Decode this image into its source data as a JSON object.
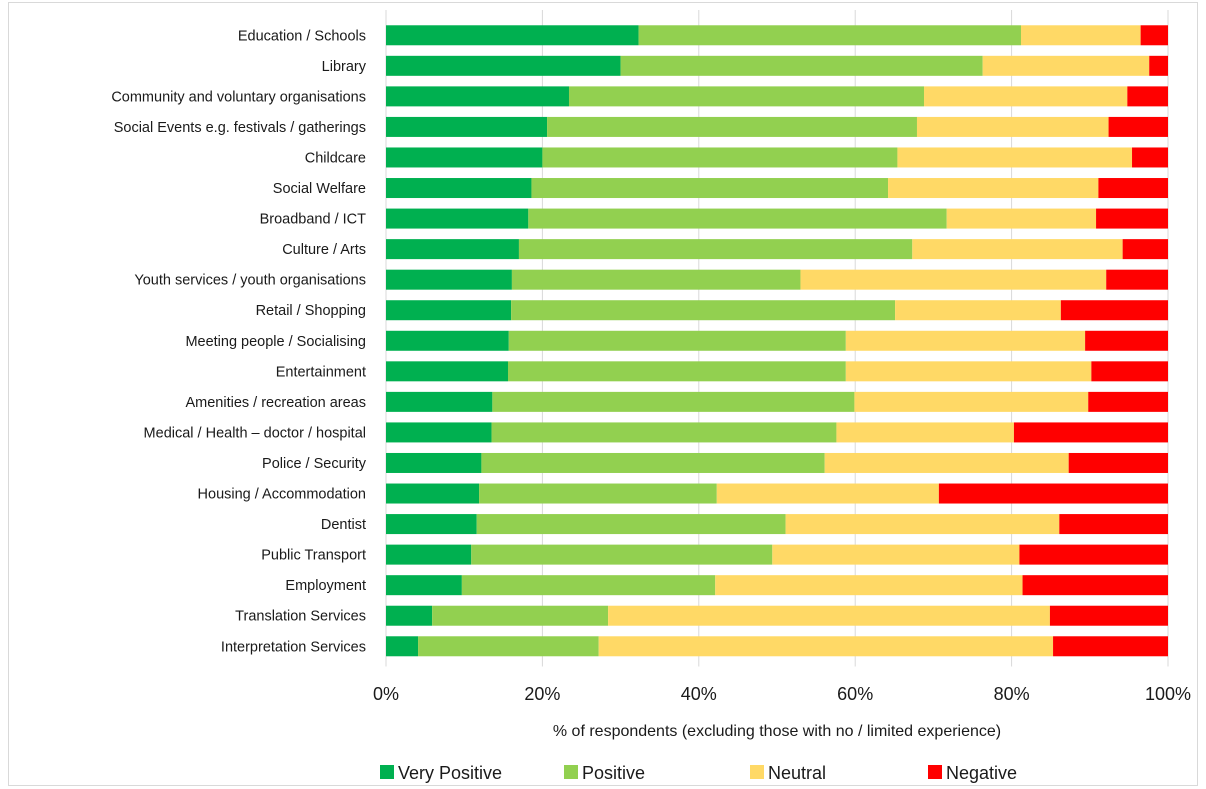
{
  "chart_data": {
    "type": "bar",
    "orientation": "horizontal",
    "stacked": "percent",
    "title": "",
    "xlabel": "% of respondents (excluding those with no / limited experience)",
    "ylabel": "",
    "xlim": [
      0,
      100
    ],
    "x_ticks": [
      "0%",
      "20%",
      "40%",
      "60%",
      "80%",
      "100%"
    ],
    "grid": true,
    "legend_position": "bottom",
    "categories": [
      "Education / Schools",
      "Library",
      "Community and voluntary organisations",
      "Social Events e.g. festivals / gatherings",
      "Childcare",
      "Social Welfare",
      "Broadband / ICT",
      "Culture / Arts",
      "Youth services / youth organisations",
      "Retail / Shopping",
      "Meeting people / Socialising",
      "Entertainment",
      "Amenities / recreation areas",
      "Medical / Health – doctor / hospital",
      "Police / Security",
      "Housing / Accommodation",
      "Dentist",
      "Public Transport",
      "Employment",
      "Translation Services",
      "Interpretation Services"
    ],
    "series": [
      {
        "name": "Very Positive",
        "color": "#00b050",
        "values": [
          32.3,
          30.0,
          23.4,
          20.6,
          20.0,
          18.6,
          18.2,
          17.0,
          16.1,
          16.0,
          15.7,
          15.6,
          13.6,
          13.5,
          12.2,
          11.9,
          11.6,
          10.9,
          9.7,
          5.9,
          4.1
        ]
      },
      {
        "name": "Positive",
        "color": "#92d050",
        "values": [
          48.9,
          46.3,
          45.4,
          47.3,
          45.4,
          45.6,
          53.5,
          50.3,
          36.9,
          49.1,
          43.1,
          43.2,
          46.3,
          44.1,
          43.9,
          30.4,
          39.5,
          38.5,
          32.4,
          22.5,
          23.1
        ]
      },
      {
        "name": "Neutral",
        "color": "#ffd966",
        "values": [
          15.3,
          21.3,
          26.0,
          24.5,
          30.0,
          26.9,
          19.1,
          26.9,
          39.1,
          21.2,
          30.6,
          31.4,
          29.9,
          22.7,
          31.2,
          28.4,
          35.0,
          31.6,
          39.3,
          56.5,
          58.1
        ]
      },
      {
        "name": "Negative",
        "color": "#ff0000",
        "values": [
          3.5,
          2.4,
          5.2,
          7.6,
          4.6,
          8.9,
          9.2,
          5.8,
          7.9,
          13.7,
          10.6,
          9.8,
          10.2,
          19.7,
          12.7,
          29.3,
          13.9,
          19.0,
          18.6,
          15.1,
          14.7
        ]
      }
    ]
  }
}
